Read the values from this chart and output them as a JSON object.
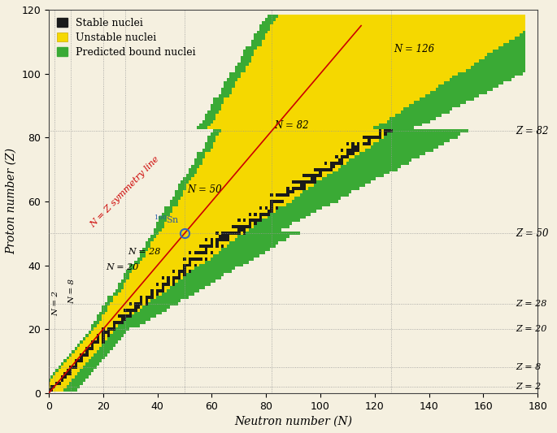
{
  "background_color": "#f5f0e0",
  "xlim": [
    0,
    180
  ],
  "ylim": [
    0,
    120
  ],
  "xlabel": "Neutron number (N)",
  "ylabel": "Proton number (Z)",
  "xlabel_fontsize": 11,
  "ylabel_fontsize": 11,
  "magic_numbers_N": [
    2,
    8,
    20,
    28,
    50,
    82,
    126
  ],
  "magic_numbers_Z": [
    2,
    8,
    20,
    28,
    50,
    82
  ],
  "nz_line_color": "#cc0000",
  "colors": {
    "stable": "#1a1a1a",
    "unstable": "#f5d800",
    "predicted": "#3aaa35",
    "background": "#f5f0e0"
  },
  "legend_labels": [
    "Stable nuclei",
    "Unstable nuclei",
    "Predicted bound nuclei"
  ],
  "figsize": [
    6.85,
    5.33
  ],
  "dpi": 100
}
